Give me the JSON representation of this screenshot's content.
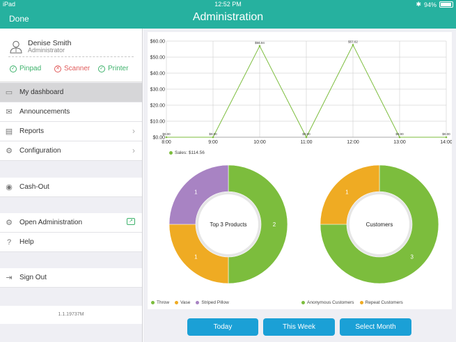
{
  "status_bar": {
    "device": "iPad",
    "time": "12:52 PM",
    "battery": "94%"
  },
  "header": {
    "done_label": "Done",
    "title": "Administration"
  },
  "user": {
    "name": "Denise Smith",
    "role": "Administrator"
  },
  "devices": [
    {
      "label": "Pinpad",
      "state": "ok"
    },
    {
      "label": "Scanner",
      "state": "error"
    },
    {
      "label": "Printer",
      "state": "ok"
    }
  ],
  "menu": {
    "dashboard": "My dashboard",
    "announcements": "Announcements",
    "reports": "Reports",
    "configuration": "Configuration",
    "cashout": "Cash-Out",
    "open_admin": "Open Administration",
    "help": "Help",
    "signout": "Sign Out"
  },
  "version": "1.1.19737M",
  "buttons": {
    "today": "Today",
    "this_week": "This Week",
    "select_month": "Select Month"
  },
  "colors": {
    "accent": "#26b19f",
    "green": "#7cbd3d",
    "orange": "#efab23",
    "purple": "#a883c3",
    "button": "#1ba0d6"
  },
  "chart_data": [
    {
      "type": "line",
      "x": [
        "8:00",
        "9:00",
        "10:00",
        "11:00",
        "12:00",
        "13:00",
        "14:00"
      ],
      "series": [
        {
          "name": "Sales: $114.56",
          "values": [
            0,
            0,
            56.94,
            0,
            57.62,
            0,
            0
          ]
        }
      ],
      "data_labels": [
        "$0.00",
        "$0.00",
        "$56.94",
        "$0.00",
        "$57.62",
        "$0.00",
        "$0.00"
      ],
      "y_ticks": [
        "$0.00",
        "$10.00",
        "$20.00",
        "$30.00",
        "$40.00",
        "$50.00",
        "$60.00"
      ],
      "ylim": [
        0,
        60
      ],
      "grid": true,
      "legend": "bottom-left"
    },
    {
      "type": "pie",
      "title": "Top 3 Products",
      "categories": [
        "Throw",
        "Vase",
        "Striped Pillow"
      ],
      "values": [
        2,
        1,
        1
      ],
      "legend": "bottom-left"
    },
    {
      "type": "pie",
      "title": "Customers",
      "categories": [
        "Anonymous Customers",
        "Repeat Customers"
      ],
      "values": [
        3,
        1
      ],
      "legend": "bottom-left"
    }
  ]
}
